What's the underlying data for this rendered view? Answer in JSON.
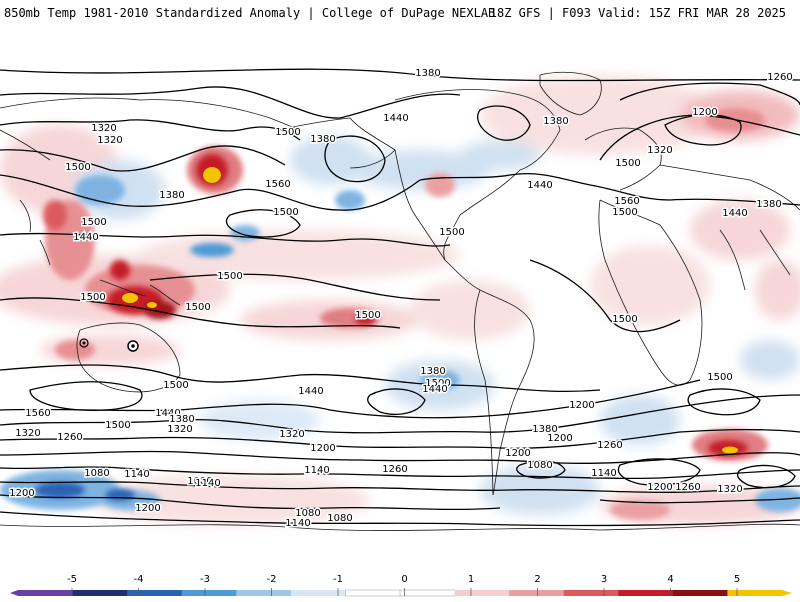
{
  "header": {
    "title": "850mb Temp 1981-2010 Standardized Anomaly | College of DuPage NEXLAB",
    "valid": "18Z GFS | F093 Valid: 15Z FRI MAR 28 2025"
  },
  "map": {
    "field": "850mb temperature standardized anomaly",
    "projection": "global cylindrical, Pacific-centered",
    "contour_labels": [
      "1380",
      "1260",
      "1320",
      "1380",
      "1500",
      "1440",
      "1380",
      "1500",
      "1320",
      "1560",
      "1500",
      "1380",
      "1320",
      "1200",
      "1500",
      "1500",
      "1440",
      "1560",
      "1500",
      "1440",
      "1380",
      "1500",
      "1500",
      "1440",
      "1500",
      "1500",
      "1500",
      "1500",
      "1500",
      "1500",
      "1440",
      "1500",
      "1440",
      "1380",
      "1560",
      "1440",
      "1500",
      "1320",
      "1380",
      "1320",
      "1200",
      "1260",
      "1320",
      "1200",
      "1260",
      "1140",
      "1380",
      "1200",
      "1080",
      "1140",
      "1080",
      "1200",
      "1260",
      "1320",
      "1260",
      "1200",
      "1080",
      "1200",
      "1140",
      "1080",
      "1140",
      "1080",
      "1200",
      "1140"
    ]
  },
  "colorbar": {
    "ticks": [
      "-5",
      "-4",
      "-3",
      "-2",
      "-1",
      "0",
      "1",
      "2",
      "3",
      "4",
      "5"
    ],
    "colors": [
      "#6a3fa8",
      "#1e2f70",
      "#2a62b4",
      "#4c9ad8",
      "#9fc7ea",
      "#d7e6f5",
      "#ffffff",
      "#ffffff",
      "#f5cfd0",
      "#eaa0a2",
      "#dc5a5e",
      "#c41c25",
      "#8c0f15",
      "#f5c400"
    ],
    "accent": "#c41c25"
  }
}
